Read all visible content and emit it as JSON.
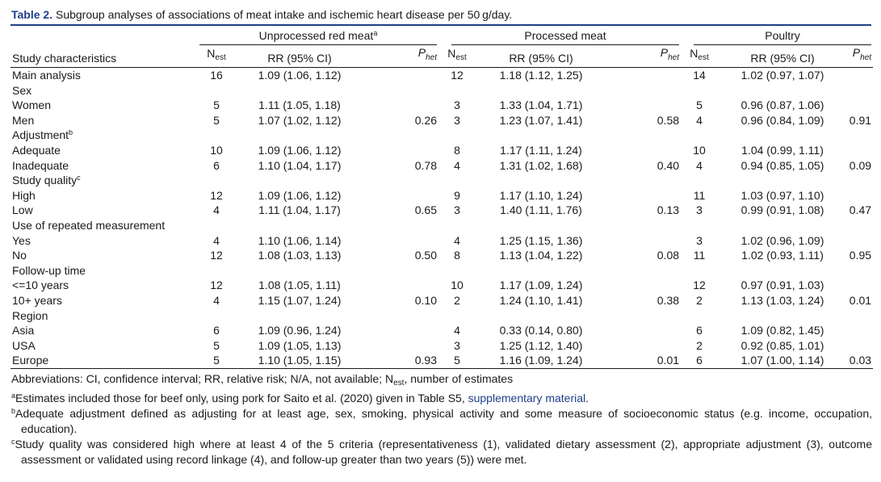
{
  "caption": {
    "label": "Table 2.",
    "text": "Subgroup analyses of associations of meat intake and ischemic heart disease per 50 g/day."
  },
  "groups": [
    {
      "label": "Unprocessed red meat",
      "sup": "a"
    },
    {
      "label": "Processed meat",
      "sup": ""
    },
    {
      "label": "Poultry",
      "sup": ""
    }
  ],
  "col_headers": {
    "study": "Study characteristics",
    "n_main": "N",
    "n_sub": "est",
    "rr": "RR (95% CI)",
    "p_main": "P",
    "p_sub": "het"
  },
  "rows": [
    {
      "label": "Main analysis",
      "sup": "",
      "red": [
        "16",
        "1.09 (1.06, 1.12)",
        ""
      ],
      "proc": [
        "12",
        "1.18 (1.12, 1.25)",
        ""
      ],
      "poul": [
        "14",
        "1.02 (0.97, 1.07)",
        ""
      ]
    },
    {
      "label": "Sex",
      "sup": "",
      "red": [
        "",
        "",
        ""
      ],
      "proc": [
        "",
        "",
        ""
      ],
      "poul": [
        "",
        "",
        ""
      ]
    },
    {
      "label": "Women",
      "sup": "",
      "red": [
        "5",
        "1.11 (1.05, 1.18)",
        ""
      ],
      "proc": [
        "3",
        "1.33 (1.04, 1.71)",
        ""
      ],
      "poul": [
        "5",
        "0.96 (0.87, 1.06)",
        ""
      ]
    },
    {
      "label": "Men",
      "sup": "",
      "red": [
        "5",
        "1.07 (1.02, 1.12)",
        "0.26"
      ],
      "proc": [
        "3",
        "1.23 (1.07, 1.41)",
        "0.58"
      ],
      "poul": [
        "4",
        "0.96 (0.84, 1.09)",
        "0.91"
      ]
    },
    {
      "label": "Adjustment",
      "sup": "b",
      "red": [
        "",
        "",
        ""
      ],
      "proc": [
        "",
        "",
        ""
      ],
      "poul": [
        "",
        "",
        ""
      ]
    },
    {
      "label": "Adequate",
      "sup": "",
      "red": [
        "10",
        "1.09 (1.06, 1.12)",
        ""
      ],
      "proc": [
        "8",
        "1.17 (1.11, 1.24)",
        ""
      ],
      "poul": [
        "10",
        "1.04 (0.99, 1.11)",
        ""
      ]
    },
    {
      "label": "Inadequate",
      "sup": "",
      "red": [
        "6",
        "1.10 (1.04, 1.17)",
        "0.78"
      ],
      "proc": [
        "4",
        "1.31 (1.02, 1.68)",
        "0.40"
      ],
      "poul": [
        "4",
        "0.94 (0.85, 1.05)",
        "0.09"
      ]
    },
    {
      "label": "Study quality",
      "sup": "c",
      "red": [
        "",
        "",
        ""
      ],
      "proc": [
        "",
        "",
        ""
      ],
      "poul": [
        "",
        "",
        ""
      ]
    },
    {
      "label": "High",
      "sup": "",
      "red": [
        "12",
        "1.09 (1.06, 1.12)",
        ""
      ],
      "proc": [
        "9",
        "1.17 (1.10, 1.24)",
        ""
      ],
      "poul": [
        "11",
        "1.03 (0.97, 1.10)",
        ""
      ]
    },
    {
      "label": "Low",
      "sup": "",
      "red": [
        "4",
        "1.11 (1.04, 1.17)",
        "0.65"
      ],
      "proc": [
        "3",
        "1.40 (1.11, 1.76)",
        "0.13"
      ],
      "poul": [
        "3",
        "0.99 (0.91, 1.08)",
        "0.47"
      ]
    },
    {
      "label": "Use of repeated measurement",
      "sup": "",
      "red": [
        "",
        "",
        ""
      ],
      "proc": [
        "",
        "",
        ""
      ],
      "poul": [
        "",
        "",
        ""
      ]
    },
    {
      "label": "Yes",
      "sup": "",
      "red": [
        "4",
        "1.10 (1.06, 1.14)",
        ""
      ],
      "proc": [
        "4",
        "1.25 (1.15, 1.36)",
        ""
      ],
      "poul": [
        "3",
        "1.02 (0.96, 1.09)",
        ""
      ]
    },
    {
      "label": "No",
      "sup": "",
      "red": [
        "12",
        "1.08 (1.03, 1.13)",
        "0.50"
      ],
      "proc": [
        "8",
        "1.13 (1.04, 1.22)",
        "0.08"
      ],
      "poul": [
        "11",
        "1.02 (0.93, 1.11)",
        "0.95"
      ]
    },
    {
      "label": "Follow-up time",
      "sup": "",
      "red": [
        "",
        "",
        ""
      ],
      "proc": [
        "",
        "",
        ""
      ],
      "poul": [
        "",
        "",
        ""
      ]
    },
    {
      "label": "<=10 years",
      "sup": "",
      "red": [
        "12",
        "1.08 (1.05, 1.11)",
        ""
      ],
      "proc": [
        "10",
        "1.17 (1.09, 1.24)",
        ""
      ],
      "poul": [
        "12",
        "0.97 (0.91, 1.03)",
        ""
      ]
    },
    {
      "label": "10+ years",
      "sup": "",
      "red": [
        "4",
        "1.15 (1.07, 1.24)",
        "0.10"
      ],
      "proc": [
        "2",
        "1.24 (1.10, 1.41)",
        "0.38"
      ],
      "poul": [
        "2",
        "1.13 (1.03, 1.24)",
        "0.01"
      ]
    },
    {
      "label": "Region",
      "sup": "",
      "red": [
        "",
        "",
        ""
      ],
      "proc": [
        "",
        "",
        ""
      ],
      "poul": [
        "",
        "",
        ""
      ]
    },
    {
      "label": "Asia",
      "sup": "",
      "red": [
        "6",
        "1.09 (0.96, 1.24)",
        ""
      ],
      "proc": [
        "4",
        "0.33 (0.14, 0.80)",
        ""
      ],
      "poul": [
        "6",
        "1.09 (0.82, 1.45)",
        ""
      ]
    },
    {
      "label": "USA",
      "sup": "",
      "red": [
        "5",
        "1.09 (1.05, 1.13)",
        ""
      ],
      "proc": [
        "3",
        "1.25 (1.12, 1.40)",
        ""
      ],
      "poul": [
        "2",
        "0.92 (0.85, 1.01)",
        ""
      ]
    },
    {
      "label": "Europe",
      "sup": "",
      "red": [
        "5",
        "1.10 (1.05, 1.15)",
        "0.93"
      ],
      "proc": [
        "5",
        "1.16 (1.09, 1.24)",
        "0.01"
      ],
      "poul": [
        "6",
        "1.07 (1.00, 1.14)",
        "0.03"
      ]
    }
  ],
  "notes": {
    "abbrev_a": "Abbreviations: CI, confidence interval; RR, relative risk; N/A, not available; N",
    "abbrev_sub": "est",
    "abbrev_b": ", number of estimates",
    "a_mark": "a",
    "a_text": "Estimates included those for beef only, using pork for Saito et al. (2020) given in Table S5, ",
    "a_link": "supplementary material",
    "a_end": ".",
    "b_mark": "b",
    "b_text": "Adequate adjustment defined as adjusting for at least age, sex, smoking, physical activity and some measure of socioeconomic status (e.g. income, occupation, education).",
    "c_mark": "c",
    "c_text": "Study quality was considered high where at least 4 of the 5 criteria (representativeness (1), validated dietary assessment (2), appropriate adjustment (3), outcome assessment or validated using record linkage (4), and follow-up greater than two years (5)) were met."
  },
  "colors": {
    "accent": "#1f3f8a",
    "text": "#1a1a1a"
  }
}
